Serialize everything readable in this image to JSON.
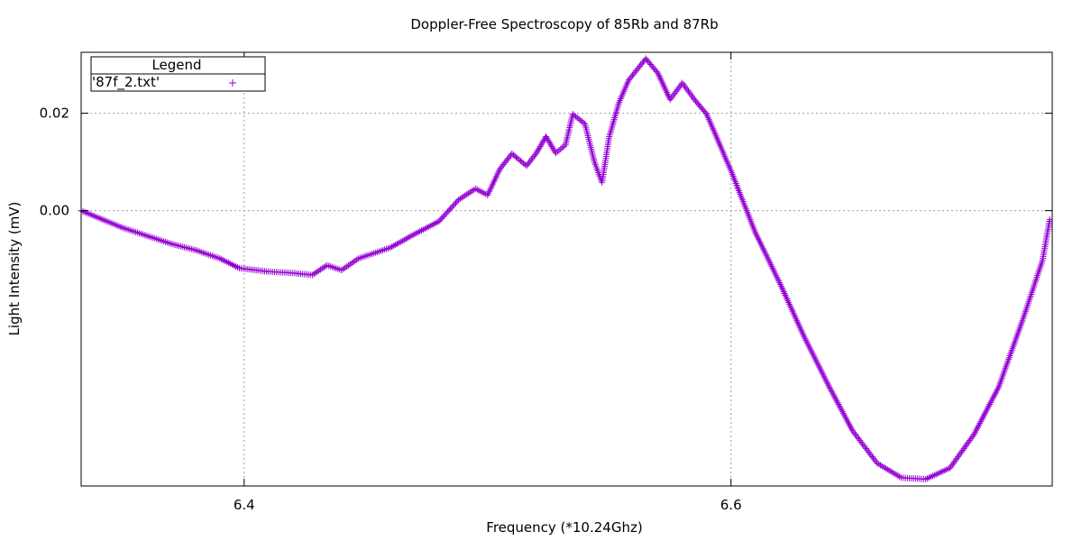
{
  "chart_data": {
    "type": "scatter",
    "title": "Doppler-Free Spectroscopy of 85Rb and 87Rb",
    "xlabel": "Frequency (*10.24Ghz)",
    "ylabel": "Light Intensity (mV)",
    "xlim": [
      6.333,
      6.732
    ],
    "ylim": [
      -0.0565,
      0.0325
    ],
    "x_ticks": [
      "6.4",
      "6.6"
    ],
    "y_ticks": [
      "0.00",
      "0.02"
    ],
    "x_tick_values": [
      6.4,
      6.6
    ],
    "y_tick_values": [
      0.0,
      0.02
    ],
    "grid": true,
    "legend": {
      "title": "Legend",
      "placement": "top-left"
    },
    "marker": "+",
    "color": "#9400d3",
    "series": [
      {
        "name": "'87f_2.txt'",
        "points": [
          [
            6.333,
            0.0
          ],
          [
            6.35,
            -0.0035
          ],
          [
            6.37,
            -0.0068
          ],
          [
            6.38,
            -0.0081
          ],
          [
            6.39,
            -0.0098
          ],
          [
            6.398,
            -0.0118
          ],
          [
            6.41,
            -0.0125
          ],
          [
            6.42,
            -0.0128
          ],
          [
            6.428,
            -0.0132
          ],
          [
            6.434,
            -0.0112
          ],
          [
            6.44,
            -0.0122
          ],
          [
            6.447,
            -0.0098
          ],
          [
            6.46,
            -0.0076
          ],
          [
            6.47,
            -0.0048
          ],
          [
            6.48,
            -0.0022
          ],
          [
            6.488,
            0.0022
          ],
          [
            6.495,
            0.0045
          ],
          [
            6.5,
            0.0032
          ],
          [
            6.505,
            0.0085
          ],
          [
            6.51,
            0.0117
          ],
          [
            6.516,
            0.0092
          ],
          [
            6.52,
            0.0118
          ],
          [
            6.524,
            0.0152
          ],
          [
            6.528,
            0.0118
          ],
          [
            6.532,
            0.0135
          ],
          [
            6.535,
            0.0198
          ],
          [
            6.54,
            0.0178
          ],
          [
            6.544,
            0.0098
          ],
          [
            6.547,
            0.0058
          ],
          [
            6.55,
            0.0152
          ],
          [
            6.554,
            0.0222
          ],
          [
            6.558,
            0.0268
          ],
          [
            6.565,
            0.0312
          ],
          [
            6.57,
            0.0282
          ],
          [
            6.575,
            0.0228
          ],
          [
            6.58,
            0.0262
          ],
          [
            6.585,
            0.0228
          ],
          [
            6.59,
            0.0198
          ],
          [
            6.6,
            0.0082
          ],
          [
            6.61,
            -0.0045
          ],
          [
            6.62,
            -0.0148
          ],
          [
            6.63,
            -0.0258
          ],
          [
            6.64,
            -0.0358
          ],
          [
            6.65,
            -0.0452
          ],
          [
            6.66,
            -0.0518
          ],
          [
            6.67,
            -0.0548
          ],
          [
            6.68,
            -0.0551
          ],
          [
            6.69,
            -0.0528
          ],
          [
            6.7,
            -0.0458
          ],
          [
            6.71,
            -0.0362
          ],
          [
            6.72,
            -0.0222
          ],
          [
            6.728,
            -0.0102
          ],
          [
            6.731,
            -0.0018
          ]
        ]
      }
    ]
  }
}
